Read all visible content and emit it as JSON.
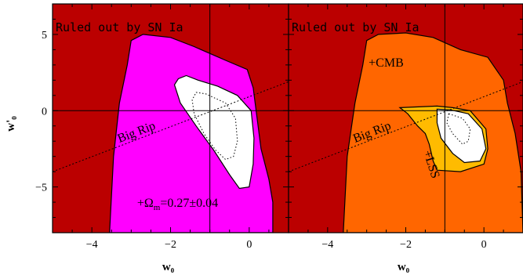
{
  "chart_data": [
    {
      "type": "contour",
      "panel_label": "Ruled out by SN Ia",
      "xlabel": "w₀",
      "ylabel": "w'₀",
      "xlim": [
        -5,
        1
      ],
      "ylim": [
        -8,
        7
      ],
      "xticks": [
        -4,
        -2,
        0
      ],
      "yticks": [
        5,
        0,
        -5
      ],
      "xtick_labels": [
        "−4",
        "−2",
        "0"
      ],
      "ytick_labels": [
        "5",
        "0",
        "−5"
      ],
      "reference_point": {
        "x": -1,
        "y": 0
      },
      "big_rip_line": {
        "label": "Big Rip",
        "x": [
          -5,
          1
        ],
        "y": [
          -4,
          1.9
        ]
      },
      "annotations": [
        {
          "text": "+Ω",
          "sub": "m",
          "rest": "=0.27±0.04",
          "x": -2.85,
          "y": -6.3
        }
      ],
      "colors": {
        "excluded": "#bb0000",
        "allowed": "#ff00ff",
        "inner": "#ffffff"
      },
      "regions": [
        {
          "name": "allowed",
          "fill": "#ff00ff",
          "points": [
            [
              -3.55,
              -8
            ],
            [
              -3.45,
              -3.0
            ],
            [
              -3.3,
              0.5
            ],
            [
              -3.1,
              3.0
            ],
            [
              -3.0,
              4.6
            ],
            [
              -2.7,
              5.0
            ],
            [
              -2.0,
              4.8
            ],
            [
              -1.4,
              4.2
            ],
            [
              -0.6,
              3.3
            ],
            [
              -0.05,
              2.7
            ],
            [
              0.1,
              1.5
            ],
            [
              0.2,
              -0.5
            ],
            [
              0.3,
              -2.5
            ],
            [
              0.5,
              -4.5
            ],
            [
              0.6,
              -6.0
            ],
            [
              0.6,
              -8
            ]
          ]
        },
        {
          "name": "inner-contour",
          "fill": "#ffffff",
          "points": [
            [
              -1.8,
              2.1
            ],
            [
              -1.6,
              2.3
            ],
            [
              -1.3,
              2.0
            ],
            [
              -0.8,
              1.6
            ],
            [
              -0.3,
              1.0
            ],
            [
              0.05,
              0.0
            ],
            [
              0.12,
              -1.8
            ],
            [
              0.1,
              -3.5
            ],
            [
              0.0,
              -5.0
            ],
            [
              -0.25,
              -5.1
            ],
            [
              -0.5,
              -4.2
            ],
            [
              -0.9,
              -2.6
            ],
            [
              -1.35,
              -1.0
            ],
            [
              -1.75,
              0.5
            ],
            [
              -1.9,
              1.7
            ]
          ]
        },
        {
          "name": "dotted-contour",
          "dotted": true,
          "points": [
            [
              -1.35,
              1.2
            ],
            [
              -1.1,
              1.1
            ],
            [
              -0.6,
              0.5
            ],
            [
              -0.35,
              -0.5
            ],
            [
              -0.3,
              -2.0
            ],
            [
              -0.4,
              -3.0
            ],
            [
              -0.6,
              -3.2
            ],
            [
              -0.85,
              -2.6
            ],
            [
              -1.15,
              -1.5
            ],
            [
              -1.4,
              -0.2
            ],
            [
              -1.45,
              0.7
            ]
          ]
        }
      ]
    },
    {
      "type": "contour",
      "panel_label": "Ruled out by SN Ia",
      "xlabel": "w₀",
      "xlim": [
        -5,
        1
      ],
      "ylim": [
        -8,
        7
      ],
      "xticks": [
        -4,
        -2,
        0
      ],
      "xtick_labels": [
        "−4",
        "−2",
        "0"
      ],
      "reference_point": {
        "x": -1,
        "y": 0
      },
      "big_rip_line": {
        "label": "Big Rip",
        "x": [
          -5,
          1
        ],
        "y": [
          -4,
          1.9
        ]
      },
      "annotations": [
        {
          "text": "+CMB",
          "x": -2.95,
          "y": 2.9
        },
        {
          "text": "+LSS",
          "x": -1.55,
          "y": -2.7,
          "rotate": 72
        }
      ],
      "colors": {
        "excluded": "#bb0000",
        "cmb": "#ff6600",
        "lss": "#ffbb00",
        "inner": "#ffffff"
      },
      "regions": [
        {
          "name": "cmb-allowed",
          "fill": "#ff6600",
          "points": [
            [
              -3.6,
              -8
            ],
            [
              -3.5,
              -3.0
            ],
            [
              -3.3,
              0.5
            ],
            [
              -3.1,
              3.0
            ],
            [
              -3.0,
              4.6
            ],
            [
              -2.7,
              5.0
            ],
            [
              -2.0,
              5.1
            ],
            [
              -1.3,
              4.8
            ],
            [
              -0.6,
              4.0
            ],
            [
              0.1,
              3.5
            ],
            [
              0.5,
              2.0
            ],
            [
              0.6,
              0.5
            ],
            [
              0.8,
              -1.5
            ],
            [
              0.95,
              -4.0
            ],
            [
              1.0,
              -8
            ]
          ]
        },
        {
          "name": "lss-allowed",
          "fill": "#ffbb00",
          "points": [
            [
              -2.15,
              0.2
            ],
            [
              -1.2,
              0.3
            ],
            [
              -0.8,
              0.2
            ],
            [
              -0.35,
              0.0
            ],
            [
              0.05,
              -1.2
            ],
            [
              0.1,
              -2.5
            ],
            [
              0.0,
              -3.5
            ],
            [
              -0.6,
              -4.0
            ],
            [
              -1.2,
              -3.9
            ],
            [
              -1.3,
              -3.3
            ],
            [
              -1.4,
              -2.2
            ],
            [
              -1.5,
              -1.5
            ],
            [
              -1.7,
              -1.0
            ],
            [
              -1.95,
              -0.2
            ]
          ]
        },
        {
          "name": "inner-contour",
          "fill": "#ffffff",
          "points": [
            [
              -1.2,
              0.1
            ],
            [
              -0.85,
              0.05
            ],
            [
              -0.4,
              -0.2
            ],
            [
              -0.05,
              -1.2
            ],
            [
              0.05,
              -2.5
            ],
            [
              -0.1,
              -3.3
            ],
            [
              -0.5,
              -3.4
            ],
            [
              -0.8,
              -2.8
            ],
            [
              -1.1,
              -1.8
            ],
            [
              -1.2,
              -0.8
            ]
          ]
        },
        {
          "name": "dotted-contour",
          "dotted": true,
          "points": [
            [
              -0.9,
              -0.2
            ],
            [
              -0.55,
              -0.5
            ],
            [
              -0.35,
              -1.2
            ],
            [
              -0.4,
              -2.0
            ],
            [
              -0.55,
              -2.2
            ],
            [
              -0.8,
              -1.5
            ],
            [
              -0.95,
              -0.8
            ]
          ]
        }
      ]
    }
  ]
}
